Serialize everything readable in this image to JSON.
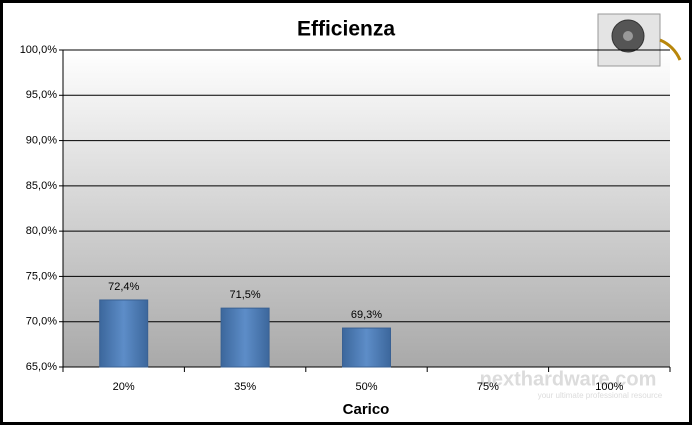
{
  "chart_data": {
    "type": "bar",
    "title": "Efficienza",
    "x_label": "Carico",
    "categories": [
      "20%",
      "35%",
      "50%",
      "75%",
      "100%"
    ],
    "values": [
      72.4,
      71.5,
      69.3,
      null,
      null
    ],
    "value_labels": [
      "72,4%",
      "71,5%",
      "69,3%",
      null,
      null
    ],
    "color": "#4f81bd",
    "ylim": [
      65,
      100
    ],
    "yticks": [
      {
        "value": 65,
        "label": "65,0%"
      },
      {
        "value": 70,
        "label": "70,0%"
      },
      {
        "value": 75,
        "label": "75,0%"
      },
      {
        "value": 80,
        "label": "80,0%"
      },
      {
        "value": 85,
        "label": "85,0%"
      },
      {
        "value": 90,
        "label": "90,0%"
      },
      {
        "value": 95,
        "label": "95,0%"
      },
      {
        "value": 100,
        "label": "100,0%"
      }
    ],
    "grid": true,
    "watermark": "nexthardware.com",
    "watermark_tagline": "your ultimate professional resource"
  }
}
